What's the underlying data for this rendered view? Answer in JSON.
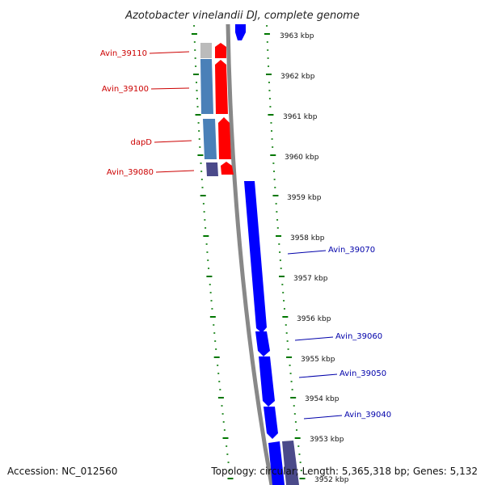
{
  "title": "Azotobacter vinelandii DJ, complete genome",
  "footer": {
    "accession": "Accession: NC_012560",
    "topology": "Topology: circular; Length: 5,365,318 bp; Genes: 5,132"
  },
  "scale_labels": [
    "3963 kbp",
    "3962 kbp",
    "3961 kbp",
    "3960 kbp",
    "3959 kbp",
    "3958 kbp",
    "3957 kbp",
    "3956 kbp",
    "3955 kbp",
    "3954 kbp",
    "3953 kbp",
    "3952 kbp"
  ],
  "gene_labels_left": [
    "Avin_39110",
    "Avin_39100",
    "dapD",
    "Avin_39080"
  ],
  "gene_labels_right": [
    "Avin_39070",
    "Avin_39060",
    "Avin_39050",
    "Avin_39040"
  ],
  "colors": {
    "forward_gene": "#ff0000",
    "reverse_gene": "#0000ff",
    "cds_feature": "#4a80b8",
    "dark_feature": "#4b4a8a",
    "grey_feature": "#bbbbbb",
    "backbone": "#888888",
    "ticks": "#007700"
  }
}
